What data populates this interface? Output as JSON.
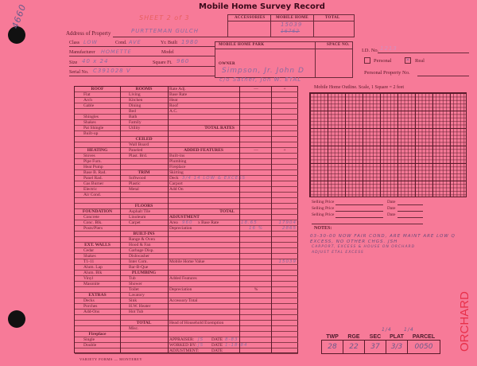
{
  "form": {
    "title": "Mobile Home Survey Record",
    "corner_note": "4660",
    "sheet_note": "SHEET 2 of 3",
    "address_label": "Address of Property",
    "address_value": "PURTTEMAN GULCH",
    "class_label": "Class",
    "class_value": "LOW",
    "cond_label": "Cond.",
    "cond_value": "AVE",
    "yr_built_label": "Yr. Built",
    "yr_built_value": "1980",
    "manufacturer_label": "Manufacturer",
    "manufacturer_value": "HOMETTE",
    "model_label": "Model",
    "model_value": "",
    "size_label": "Size",
    "size_value": "40 x 24",
    "sqft_label": "Square Ft.",
    "sqft_value": "960",
    "serial_label": "Serial No.",
    "serial_value": "C391028 V",
    "totals_box": {
      "accessories": "ACCESSORIES",
      "mobile_home": "MOBILE HOME",
      "total": "TOTAL",
      "mobile_home_value": "15039",
      "mobile_home_old_value": "16762"
    },
    "park_box": {
      "park_label": "MOBILE HOME PARK",
      "space_label": "SPACE NO.",
      "owner_label": "OWNER",
      "owner_line1": "Simpson, Jr. John D",
      "owner_line2": "c/o Sather, Jon W. ETAL"
    },
    "id_label": "I.D. No.",
    "id_value": "1213",
    "personal_label": "Personal",
    "personal_checked": false,
    "real_label": "Real",
    "real_checked": true,
    "personal_property_label": "Personal Property No.",
    "outline_label": "Mobile Home Outline.  Scale, 1 Square = 2 feet",
    "selling_price_label": "Selling Price",
    "date_label": "Date",
    "notes_label": "NOTES:",
    "notes": [
      "03-30-00 NOW FAIR COND, ARE MAINT ARE LOW Q",
      "EXCESS, NO OTHER CHGS. JSH",
      "CARPORT, EXCESS & HOUSE ON ORCHARD",
      "ADJUST ETAL EXCESS"
    ],
    "plat": {
      "headers": [
        "TWP",
        "RGE",
        "SEC",
        "PLAT",
        "PARCEL"
      ],
      "values": [
        "28",
        "22",
        "37",
        "3/3",
        "0050"
      ],
      "quarter_marks": [
        "1/4",
        "1/4"
      ]
    },
    "orchard_stamp": "ORCHARD",
    "footer": "VARIETY FORMS — MONTEREY"
  },
  "left_col": [
    {
      "t": "ROOF",
      "h": true
    },
    {
      "t": "Flat"
    },
    {
      "t": "Arch"
    },
    {
      "t": "Gable"
    },
    {
      "t": ""
    },
    {
      "t": "Shingles"
    },
    {
      "t": "Shakes"
    },
    {
      "t": "Pat Shingle"
    },
    {
      "t": "Built-up"
    },
    {
      "t": ""
    },
    {
      "t": ""
    },
    {
      "t": "HEATING",
      "h": true
    },
    {
      "t": "Stoves"
    },
    {
      "t": "Pipe Furn."
    },
    {
      "t": "Heat Pump"
    },
    {
      "t": "Base B. Rad."
    },
    {
      "t": "Panel Rad."
    },
    {
      "t": "Gas Burner"
    },
    {
      "t": "Electric"
    },
    {
      "t": "Air Cond."
    },
    {
      "t": ""
    },
    {
      "t": ""
    },
    {
      "t": "FOUNDATION",
      "h": true
    },
    {
      "t": "Concrete"
    },
    {
      "t": "Conc. Blk."
    },
    {
      "t": "Posts/Piers"
    },
    {
      "t": ""
    },
    {
      "t": ""
    },
    {
      "t": "EXT. WALLS",
      "h": true
    },
    {
      "t": "Cedar"
    },
    {
      "t": "Shakes"
    },
    {
      "t": "T1-11"
    },
    {
      "t": "Alum. Lap"
    },
    {
      "t": "Alum. Blk"
    },
    {
      "t": "Vinyl"
    },
    {
      "t": "Masonite"
    },
    {
      "t": ""
    },
    {
      "t": "EXTRAS",
      "h": true
    },
    {
      "t": "Decks"
    },
    {
      "t": "Porches"
    },
    {
      "t": "Add-Ons"
    },
    {
      "t": ""
    },
    {
      "t": ""
    },
    {
      "t": ""
    },
    {
      "t": "Fireplace",
      "h": true
    },
    {
      "t": "Single"
    },
    {
      "t": "Double"
    },
    {
      "t": ""
    }
  ],
  "rooms_col": [
    {
      "t": "ROOMS",
      "h": true
    },
    {
      "t": "Living"
    },
    {
      "t": "Kitchen"
    },
    {
      "t": "Dining"
    },
    {
      "t": "Bed"
    },
    {
      "t": "Bath"
    },
    {
      "t": "Family"
    },
    {
      "t": "Utility"
    },
    {
      "t": ""
    },
    {
      "t": "CEILED",
      "h": true
    },
    {
      "t": "Wall Board"
    },
    {
      "t": "Paneled"
    },
    {
      "t": "Plast. Brd."
    },
    {
      "t": ""
    },
    {
      "t": ""
    },
    {
      "t": "TRIM",
      "h": true
    },
    {
      "t": "Softwood"
    },
    {
      "t": "Plastic"
    },
    {
      "t": "Metal"
    },
    {
      "t": ""
    },
    {
      "t": ""
    },
    {
      "t": "FLOORS",
      "h": true
    },
    {
      "t": "Asphalt Tile"
    },
    {
      "t": "Linoleum"
    },
    {
      "t": "Carpet"
    },
    {
      "t": ""
    },
    {
      "t": "BUILT-INS",
      "h": true
    },
    {
      "t": "Range & Oven"
    },
    {
      "t": "Hood & Fan"
    },
    {
      "t": "Garbage Disp."
    },
    {
      "t": "Dishwasher"
    },
    {
      "t": "Inter Com."
    },
    {
      "t": "Bar-B-Que"
    },
    {
      "t": "PLUMBING",
      "h": true
    },
    {
      "t": "Tub"
    },
    {
      "t": "Shower"
    },
    {
      "t": "Toilet"
    },
    {
      "t": "Lavatory"
    },
    {
      "t": "Sink"
    },
    {
      "t": "H.W. Heater"
    },
    {
      "t": "Hot Tub"
    },
    {
      "t": ""
    },
    {
      "t": "TOTAL",
      "h": true
    },
    {
      "t": "Misc."
    },
    {
      "t": ""
    },
    {
      "t": ""
    },
    {
      "t": ""
    },
    {
      "t": ""
    }
  ],
  "right_rows": [
    {
      "t": "Rate Adj.",
      "m": "—",
      "p": "+"
    },
    {
      "t": "Base Rate"
    },
    {
      "t": "Heat"
    },
    {
      "t": "Roof"
    },
    {
      "t": "A.C."
    },
    {
      "t": ""
    },
    {
      "t": ""
    },
    {
      "t": "TOTAL RATES",
      "r": true
    },
    {
      "t": ""
    },
    {
      "t": ""
    },
    {
      "t": ""
    },
    {
      "t": "ADDED FEATURES",
      "c": true,
      "m": "—",
      "p": "+"
    },
    {
      "t": "Built-ins"
    },
    {
      "t": "Plumbing"
    },
    {
      "t": "Fireplace"
    },
    {
      "t": "Skirting"
    },
    {
      "t": "Deck",
      "n": "3/4 14 LOW & EXCESS"
    },
    {
      "t": "Carport"
    },
    {
      "t": "Add On"
    },
    {
      "t": ""
    },
    {
      "t": ""
    },
    {
      "t": ""
    },
    {
      "t": "TOTAL",
      "r": true
    },
    {
      "t": "ADJUSTMENT",
      "b": true
    },
    {
      "t": "Area",
      "n": "960",
      "t2": "x Base Rate",
      "n2": "18.65",
      "p": "17904",
      "ph": true
    },
    {
      "t": "Depreciation",
      "m": "16  %",
      "p": "2865",
      "ph": true
    },
    {
      "t": ""
    },
    {
      "t": ""
    },
    {
      "t": ""
    },
    {
      "t": ""
    },
    {
      "t": ""
    },
    {
      "t": "Mobile Home Value",
      "p": "15039",
      "ph": true
    },
    {
      "t": ""
    },
    {
      "t": ""
    },
    {
      "t": "Added Features"
    },
    {
      "t": ""
    },
    {
      "t": "Depreciation",
      "m": "%"
    },
    {
      "t": ""
    },
    {
      "t": "Accessory Total"
    },
    {
      "t": ""
    },
    {
      "t": ""
    },
    {
      "t": ""
    },
    {
      "t": "Head of Household Exemption"
    },
    {
      "t": ""
    },
    {
      "t": ""
    },
    {
      "t": "APPRAISER:",
      "n": "JS",
      "t2": "DATE",
      "n2": "8-83"
    },
    {
      "t": "WORKED BY:",
      "n": "JS",
      "t2": "DATE",
      "n2": "1-18-84"
    },
    {
      "t": "ADJUSTMENT:",
      "t2": "DATE"
    }
  ],
  "colors": {
    "paper": "#f77a98",
    "ink": "#5a1a2a",
    "stamp": "#e8304a",
    "handwriting": "#8a6aa0"
  }
}
